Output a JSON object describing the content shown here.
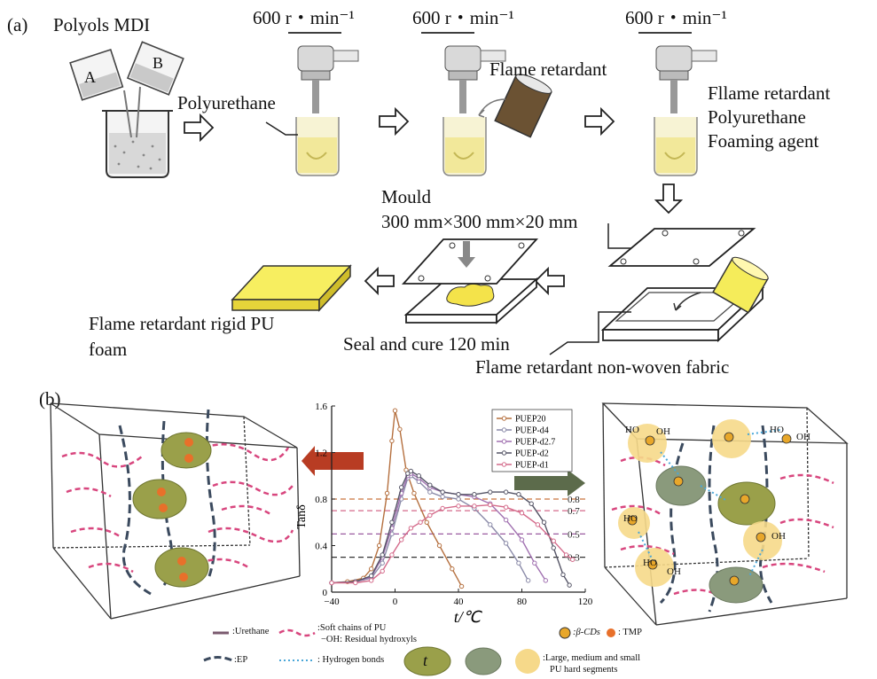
{
  "panel_a": {
    "label": "(a)",
    "reagents": "Polyols MDI",
    "beaker_a": "A",
    "beaker_b": "B",
    "speed": "600 r・min⁻¹",
    "polyurethane": "Polyurethane",
    "flame_retardant": "Flame retardant",
    "mix_lines": [
      "Fllame retardant",
      "Polyurethane",
      "Foaming agent"
    ],
    "mould_title": "Mould",
    "mould_size": "300 mm×300 mm×20 mm",
    "product_line1": "Flame retardant rigid PU",
    "product_line2": "foam",
    "seal": "Seal and cure 120 min",
    "fabric": "Flame retardant non-woven fabric"
  },
  "panel_b": {
    "label": "(b)",
    "legend": {
      "urethane": ":Urethane",
      "soft_chains": ":Soft chains of PU",
      "hydroxyls": "−OH: Residual hydroxyls",
      "cds": ":β-CDs",
      "tmp": ": TMP",
      "ep": ":EP",
      "hbonds": ": Hydrogen bonds",
      "t_mark": "t",
      "segments1": ":Large, medium and small",
      "segments2": "PU hard segments"
    },
    "hydroxyl_label": "HO",
    "hydroxyl_label2": "OH"
  },
  "chart_data": {
    "type": "line",
    "xlabel": "t/℃",
    "ylabel": "Tanδ",
    "xlim": [
      -40,
      120
    ],
    "ylim": [
      0,
      1.6
    ],
    "x_ticks": [
      "−40",
      "0",
      "40",
      "80",
      "120"
    ],
    "y_ticks": [
      "0",
      "0.4",
      "0.8",
      "1.2",
      "1.6"
    ],
    "reference_lines": [
      {
        "value": 0.8,
        "label": "0.8",
        "color": "#c9733f"
      },
      {
        "value": 0.7,
        "label": "0.7",
        "color": "#d46a8a"
      },
      {
        "value": 0.5,
        "label": "0.5",
        "color": "#9a5aa0"
      },
      {
        "value": 0.3,
        "label": "0.3",
        "color": "#333333"
      }
    ],
    "series": [
      {
        "name": "PUEP20",
        "color": "#b5703f",
        "points": [
          [
            -40,
            0.08
          ],
          [
            -30,
            0.09
          ],
          [
            -20,
            0.12
          ],
          [
            -15,
            0.2
          ],
          [
            -10,
            0.4
          ],
          [
            -5,
            0.85
          ],
          [
            -2,
            1.3
          ],
          [
            0,
            1.56
          ],
          [
            3,
            1.4
          ],
          [
            7,
            1.05
          ],
          [
            12,
            0.85
          ],
          [
            20,
            0.6
          ],
          [
            28,
            0.4
          ],
          [
            36,
            0.2
          ],
          [
            42,
            0.05
          ]
        ]
      },
      {
        "name": "PUEP-d4",
        "color": "#8a8aa8",
        "points": [
          [
            -40,
            0.08
          ],
          [
            -25,
            0.09
          ],
          [
            -15,
            0.12
          ],
          [
            -8,
            0.25
          ],
          [
            -2,
            0.5
          ],
          [
            4,
            0.8
          ],
          [
            8,
            0.98
          ],
          [
            10,
            1.0
          ],
          [
            15,
            0.95
          ],
          [
            22,
            0.86
          ],
          [
            30,
            0.82
          ],
          [
            40,
            0.8
          ],
          [
            50,
            0.72
          ],
          [
            60,
            0.58
          ],
          [
            70,
            0.42
          ],
          [
            78,
            0.25
          ],
          [
            84,
            0.1
          ]
        ]
      },
      {
        "name": "PUEP-d2.7",
        "color": "#a070b0",
        "points": [
          [
            -40,
            0.08
          ],
          [
            -25,
            0.09
          ],
          [
            -15,
            0.13
          ],
          [
            -8,
            0.3
          ],
          [
            -2,
            0.55
          ],
          [
            4,
            0.85
          ],
          [
            8,
            1.0
          ],
          [
            10,
            1.02
          ],
          [
            15,
            0.98
          ],
          [
            22,
            0.9
          ],
          [
            30,
            0.86
          ],
          [
            40,
            0.84
          ],
          [
            50,
            0.82
          ],
          [
            60,
            0.76
          ],
          [
            70,
            0.62
          ],
          [
            80,
            0.45
          ],
          [
            88,
            0.25
          ],
          [
            95,
            0.1
          ]
        ]
      },
      {
        "name": "PUEP-d2",
        "color": "#555566",
        "points": [
          [
            -40,
            0.08
          ],
          [
            -25,
            0.09
          ],
          [
            -15,
            0.14
          ],
          [
            -8,
            0.32
          ],
          [
            -2,
            0.6
          ],
          [
            4,
            0.9
          ],
          [
            8,
            1.02
          ],
          [
            10,
            1.04
          ],
          [
            15,
            1.0
          ],
          [
            22,
            0.92
          ],
          [
            30,
            0.86
          ],
          [
            40,
            0.84
          ],
          [
            50,
            0.84
          ],
          [
            60,
            0.86
          ],
          [
            70,
            0.86
          ],
          [
            78,
            0.84
          ],
          [
            86,
            0.76
          ],
          [
            94,
            0.6
          ],
          [
            100,
            0.38
          ],
          [
            106,
            0.15
          ],
          [
            110,
            0.06
          ]
        ]
      },
      {
        "name": "PUEP-d1",
        "color": "#d46a8a",
        "points": [
          [
            -40,
            0.08
          ],
          [
            -25,
            0.08
          ],
          [
            -15,
            0.1
          ],
          [
            -8,
            0.18
          ],
          [
            -2,
            0.32
          ],
          [
            4,
            0.45
          ],
          [
            10,
            0.55
          ],
          [
            16,
            0.6
          ],
          [
            22,
            0.66
          ],
          [
            30,
            0.72
          ],
          [
            40,
            0.74
          ],
          [
            50,
            0.74
          ],
          [
            60,
            0.75
          ],
          [
            70,
            0.73
          ],
          [
            80,
            0.68
          ],
          [
            90,
            0.58
          ],
          [
            100,
            0.44
          ],
          [
            108,
            0.32
          ],
          [
            112,
            0.28
          ]
        ]
      }
    ]
  }
}
